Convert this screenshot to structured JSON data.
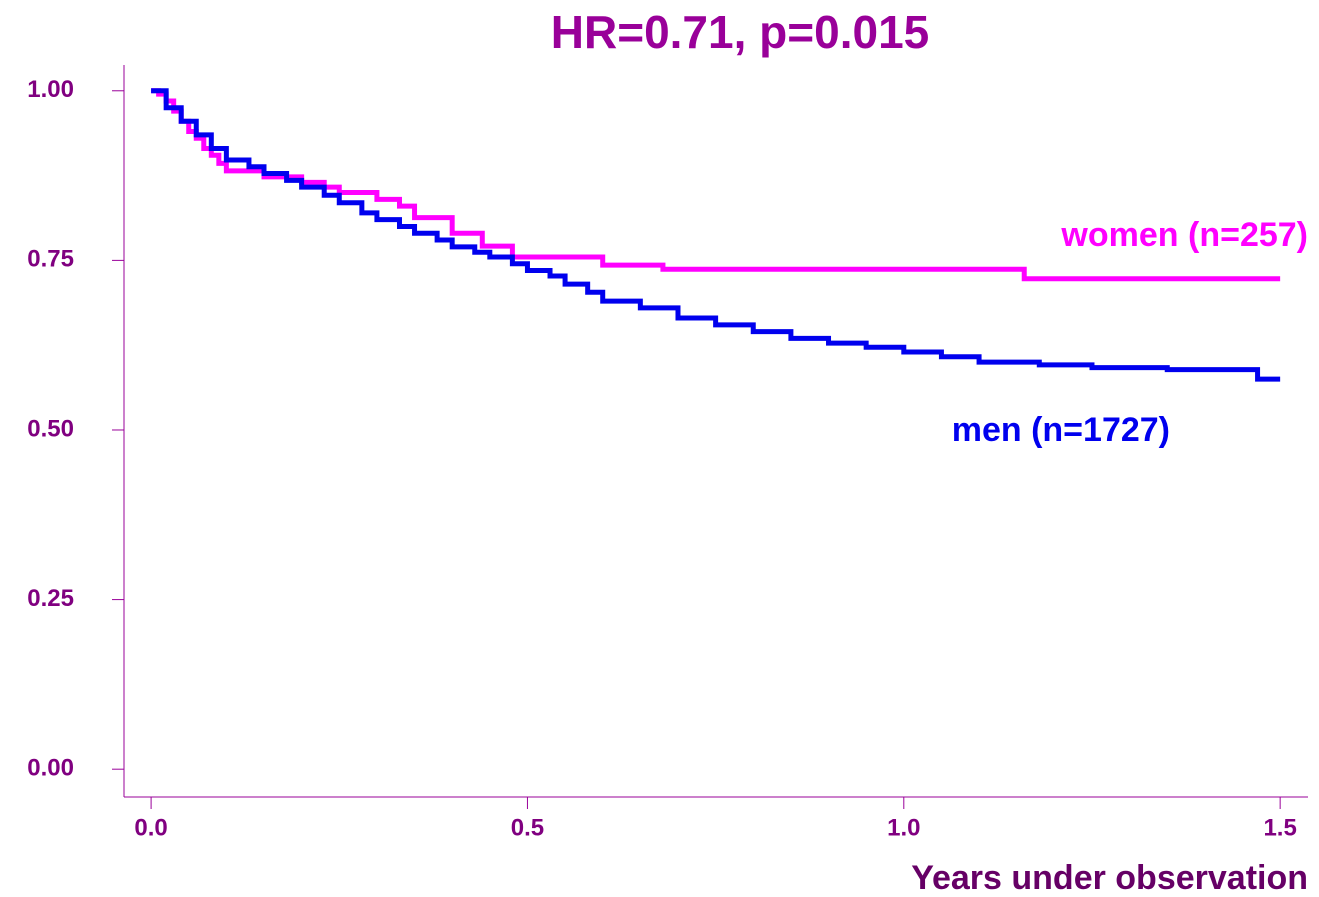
{
  "chart_data": {
    "type": "line",
    "step": true,
    "title": "HR=0.71, p=0.015",
    "x_label": "Years under observation",
    "xlim": [
      -0.036,
      1.537
    ],
    "ylim": [
      -0.041,
      1.038
    ],
    "xticks": [
      {
        "value": 0,
        "label": "0.0"
      },
      0.5,
      {
        "value": 1,
        "label": "1.0"
      },
      1.5
    ],
    "yticks": [
      {
        "value": 0,
        "label": "0.00"
      },
      0.25,
      {
        "value": 0.5,
        "label": "0.50"
      },
      0.75,
      {
        "value": 1,
        "label": "1.00"
      }
    ],
    "series": [
      {
        "name": "women (n=257)",
        "color": "#ff00ff",
        "x": [
          0,
          0.01,
          0.02,
          0.03,
          0.04,
          0.05,
          0.06,
          0.07,
          0.08,
          0.09,
          0.1,
          0.15,
          0.2,
          0.23,
          0.25,
          0.3,
          0.33,
          0.35,
          0.4,
          0.44,
          0.48,
          0.6,
          0.68,
          1.16,
          1.5
        ],
        "values": [
          1.0,
          0.995,
          0.985,
          0.97,
          0.955,
          0.94,
          0.93,
          0.915,
          0.905,
          0.893,
          0.882,
          0.873,
          0.865,
          0.858,
          0.85,
          0.84,
          0.83,
          0.813,
          0.79,
          0.771,
          0.755,
          0.743,
          0.737,
          0.723,
          0.723
        ]
      },
      {
        "name": "men (n=1727)",
        "color": "#0000ee",
        "x": [
          0,
          0.02,
          0.04,
          0.06,
          0.08,
          0.1,
          0.13,
          0.15,
          0.18,
          0.2,
          0.23,
          0.25,
          0.28,
          0.3,
          0.33,
          0.35,
          0.38,
          0.4,
          0.43,
          0.45,
          0.48,
          0.5,
          0.53,
          0.55,
          0.58,
          0.6,
          0.65,
          0.7,
          0.75,
          0.8,
          0.85,
          0.9,
          0.95,
          1.0,
          1.05,
          1.1,
          1.18,
          1.25,
          1.35,
          1.47,
          1.5
        ],
        "values": [
          1.0,
          0.975,
          0.955,
          0.935,
          0.915,
          0.898,
          0.888,
          0.878,
          0.868,
          0.858,
          0.846,
          0.835,
          0.82,
          0.81,
          0.8,
          0.79,
          0.78,
          0.77,
          0.762,
          0.755,
          0.745,
          0.735,
          0.727,
          0.715,
          0.703,
          0.69,
          0.68,
          0.665,
          0.655,
          0.645,
          0.635,
          0.628,
          0.622,
          0.615,
          0.608,
          0.6,
          0.596,
          0.592,
          0.589,
          0.575,
          0.575
        ]
      }
    ]
  }
}
